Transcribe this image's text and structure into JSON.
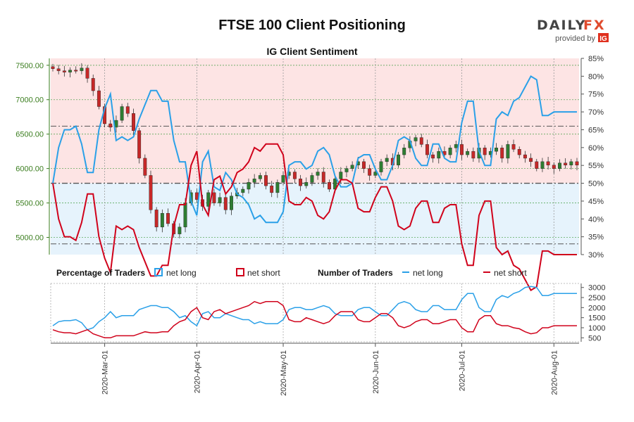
{
  "header": {
    "title": "FTSE 100 Client Positioning",
    "subtitle": "IG Client Sentiment"
  },
  "logo": {
    "part1": "DAILY",
    "part2": "FX",
    "provided_by": "provided by",
    "ig": "IG"
  },
  "legend": {
    "pct_heading": "Percentage of Traders",
    "pct_long": "net long",
    "pct_short": "net short",
    "num_heading": "Number of Traders",
    "num_long": "net long",
    "num_short": "net short"
  },
  "colors": {
    "long": "#2aa0e8",
    "short": "#d0021b",
    "up_candle": "#2e7d32",
    "down_candle": "#c62828",
    "short_zone": "#fde4e4",
    "long_zone": "#e6f3fc",
    "left_axis": "#3a7d1e"
  },
  "chart_data": [
    {
      "type": "candlestick",
      "name": "FTSE 100 price",
      "ylim": [
        4750,
        7600
      ],
      "left_ticks": [
        "5000.00",
        "5500.00",
        "6000.00",
        "6500.00",
        "7000.00",
        "7500.00"
      ],
      "left_tick_values": [
        5000,
        5500,
        6000,
        6500,
        7000,
        7500
      ],
      "closes": [
        7450,
        7420,
        7400,
        7430,
        7420,
        7460,
        7310,
        7130,
        6900,
        6650,
        6600,
        6700,
        6900,
        6800,
        6550,
        6150,
        5900,
        5400,
        5150,
        5350,
        5200,
        5050,
        5150,
        5500,
        5650,
        5550,
        5450,
        5650,
        5500,
        5580,
        5400,
        5600,
        5650,
        5700,
        5800,
        5850,
        5900,
        5750,
        5650,
        5800,
        5900,
        5950,
        5850,
        5750,
        5800,
        5900,
        5950,
        5800,
        5700,
        5850,
        5950,
        6000,
        6050,
        6100,
        6000,
        5900,
        5950,
        6100,
        6150,
        6050,
        6200,
        6300,
        6400,
        6450,
        6350,
        6200,
        6150,
        6250,
        6200,
        6300,
        6350,
        6200,
        6250,
        6150,
        6300,
        6200,
        6250,
        6300,
        6150,
        6350,
        6280,
        6200,
        6150,
        6100,
        6000,
        6100,
        6050,
        6000,
        6080,
        6050,
        6100,
        6050
      ],
      "series": [
        {
          "name": "net long %",
          "values": [
            50,
            60,
            65,
            65,
            66,
            61,
            53,
            53,
            65,
            71,
            75,
            62,
            63,
            62,
            63,
            68,
            72,
            76,
            76,
            73,
            73,
            62,
            56,
            56,
            45,
            41,
            56,
            59,
            49,
            48,
            53,
            51,
            47,
            46,
            44,
            40,
            41,
            39,
            39,
            39,
            42,
            55,
            56,
            56,
            54,
            55,
            59,
            60,
            58,
            52,
            49,
            49,
            50,
            57,
            58,
            58,
            54,
            51,
            51,
            55,
            62,
            63,
            62,
            57,
            55,
            55,
            61,
            61,
            57,
            56,
            56,
            67,
            73,
            73,
            59,
            55,
            55,
            68,
            70,
            69,
            73,
            74,
            77,
            80,
            79,
            69,
            69,
            70,
            70,
            70,
            70,
            70
          ]
        },
        {
          "name": "net short %",
          "values": [
            50,
            40,
            35,
            35,
            34,
            39,
            47,
            47,
            35,
            29,
            25,
            38,
            37,
            38,
            37,
            32,
            28,
            24,
            24,
            27,
            27,
            38,
            44,
            44,
            55,
            59,
            44,
            41,
            51,
            52,
            47,
            49,
            53,
            54,
            56,
            60,
            59,
            61,
            61,
            61,
            58,
            45,
            44,
            44,
            46,
            45,
            41,
            40,
            42,
            48,
            51,
            51,
            50,
            43,
            42,
            42,
            46,
            49,
            49,
            45,
            38,
            37,
            38,
            43,
            45,
            45,
            39,
            39,
            43,
            44,
            44,
            33,
            27,
            27,
            41,
            45,
            45,
            32,
            30,
            31,
            27,
            26,
            23,
            20,
            21,
            31,
            31,
            30,
            30,
            30,
            30,
            30
          ]
        }
      ],
      "right_ticks": [
        "30%",
        "35%",
        "40%",
        "45%",
        "50%",
        "55%",
        "60%",
        "65%",
        "70%",
        "75%",
        "80%",
        "85%"
      ],
      "right_ylim": [
        30,
        85
      ],
      "reference_lines": [
        33,
        50,
        66
      ]
    },
    {
      "type": "line",
      "name": "Number of Traders",
      "ylim": [
        300,
        3200
      ],
      "right_ticks": [
        "500",
        "1000",
        "1500",
        "2000",
        "2500",
        "3000"
      ],
      "right_tick_values": [
        500,
        1000,
        1500,
        2000,
        2500,
        3000
      ],
      "series": [
        {
          "name": "net long",
          "values": [
            1100,
            1300,
            1350,
            1350,
            1400,
            1250,
            900,
            1000,
            1300,
            1500,
            1800,
            1500,
            1600,
            1600,
            1600,
            1900,
            2000,
            2100,
            2100,
            2000,
            2000,
            1800,
            1500,
            1600,
            1300,
            1100,
            1700,
            1800,
            1500,
            1500,
            1700,
            1600,
            1500,
            1400,
            1400,
            1200,
            1300,
            1200,
            1200,
            1200,
            1400,
            1900,
            2000,
            2000,
            1900,
            1900,
            2000,
            2100,
            2000,
            1700,
            1600,
            1600,
            1600,
            1900,
            2000,
            2000,
            1800,
            1600,
            1600,
            1900,
            2200,
            2300,
            2200,
            1900,
            1800,
            1800,
            2100,
            2100,
            1900,
            1900,
            1900,
            2400,
            2700,
            2700,
            2000,
            1800,
            1800,
            2400,
            2600,
            2500,
            2700,
            2800,
            3000,
            3050,
            3000,
            2600,
            2600,
            2700,
            2700,
            2700,
            2700,
            2700
          ]
        },
        {
          "name": "net short",
          "values": [
            900,
            800,
            750,
            750,
            700,
            800,
            900,
            700,
            600,
            500,
            500,
            600,
            600,
            600,
            600,
            700,
            800,
            750,
            750,
            800,
            800,
            1100,
            1300,
            1400,
            1800,
            2000,
            1500,
            1400,
            1800,
            1900,
            1700,
            1800,
            1900,
            2000,
            2100,
            2300,
            2200,
            2300,
            2300,
            2300,
            2100,
            1400,
            1300,
            1300,
            1500,
            1400,
            1300,
            1200,
            1300,
            1600,
            1800,
            1800,
            1800,
            1400,
            1300,
            1300,
            1500,
            1700,
            1700,
            1500,
            1100,
            1000,
            1100,
            1300,
            1400,
            1400,
            1200,
            1200,
            1300,
            1400,
            1400,
            1000,
            800,
            800,
            1400,
            1600,
            1600,
            1200,
            1100,
            1100,
            1000,
            950,
            800,
            700,
            750,
            1000,
            1000,
            1100,
            1100,
            1100,
            1100,
            1100
          ]
        }
      ]
    }
  ],
  "x_axis": {
    "ticks": [
      {
        "label": "2020-Mar-01",
        "index": 9
      },
      {
        "label": "2020-Apr-01",
        "index": 25
      },
      {
        "label": "2020-May-01",
        "index": 40
      },
      {
        "label": "2020-Jun-01",
        "index": 56
      },
      {
        "label": "2020-Jul-01",
        "index": 71
      },
      {
        "label": "2020-Aug-01",
        "index": 87
      }
    ]
  }
}
